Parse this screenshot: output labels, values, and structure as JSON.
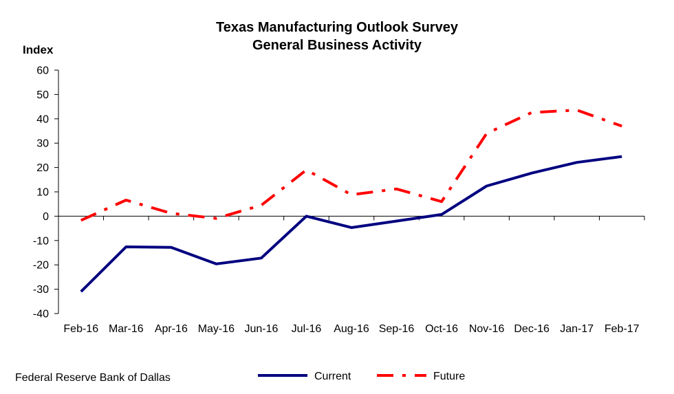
{
  "chart_data": {
    "type": "line",
    "title": "Texas Manufacturing Outlook Survey",
    "subtitle": "General Business Activity",
    "ylabel": "Index",
    "xlabel": "",
    "ylim": [
      -40,
      60
    ],
    "yticks": [
      -40,
      -30,
      -20,
      -10,
      0,
      10,
      20,
      30,
      40,
      50,
      60
    ],
    "categories": [
      "Feb-16",
      "Mar-16",
      "Apr-16",
      "May-16",
      "Jun-16",
      "Jul-16",
      "Aug-16",
      "Sep-16",
      "Oct-16",
      "Nov-16",
      "Dec-16",
      "Jan-17",
      "Feb-17"
    ],
    "series": [
      {
        "name": "Current",
        "color": "#000080",
        "style": "solid",
        "values": [
          -31.0,
          -12.6,
          -12.8,
          -19.6,
          -17.2,
          0.0,
          -4.7,
          -2.0,
          0.7,
          12.4,
          17.7,
          22.1,
          24.5
        ]
      },
      {
        "name": "Future",
        "color": "#ff0000",
        "style": "dash-dot",
        "values": [
          -1.7,
          6.6,
          1.2,
          -0.9,
          4.5,
          19.0,
          8.8,
          11.2,
          6.0,
          34.0,
          42.6,
          43.6,
          37.0
        ]
      }
    ],
    "legend_position": "bottom",
    "grid": false
  },
  "footer": {
    "source": "Federal Reserve Bank of Dallas"
  }
}
